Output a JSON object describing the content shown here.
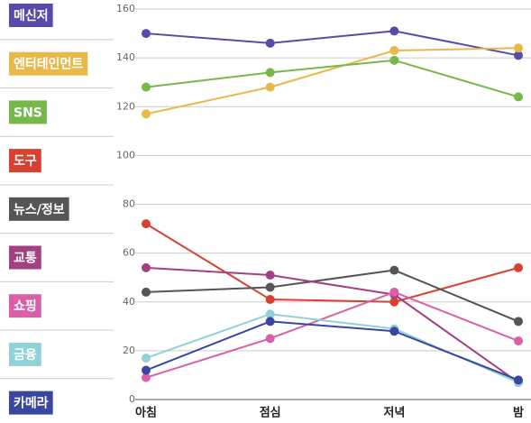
{
  "chart_data": {
    "type": "line",
    "categories": [
      "아침",
      "점심",
      "저녁",
      "밤"
    ],
    "series": [
      {
        "name": "메신저",
        "color": "#5a4aa8",
        "values": [
          150,
          146,
          151,
          141
        ]
      },
      {
        "name": "엔터테인먼트",
        "color": "#e8b84a",
        "values": [
          117,
          128,
          143,
          144
        ]
      },
      {
        "name": "SNS",
        "color": "#78b84a",
        "values": [
          128,
          134,
          139,
          124
        ]
      },
      {
        "name": "도구",
        "color": "#d8412f",
        "values": [
          72,
          41,
          40,
          54
        ]
      },
      {
        "name": "뉴스/정보",
        "color": "#555555",
        "values": [
          44,
          46,
          53,
          32
        ]
      },
      {
        "name": "교통",
        "color": "#a3407f",
        "values": [
          54,
          51,
          43,
          7
        ]
      },
      {
        "name": "쇼핑",
        "color": "#d95fa8",
        "values": [
          9,
          25,
          44,
          24
        ]
      },
      {
        "name": "금융",
        "color": "#8fd3d8",
        "values": [
          17,
          35,
          29,
          7
        ]
      },
      {
        "name": "카메라",
        "color": "#3a47a0",
        "values": [
          12,
          32,
          28,
          8
        ]
      }
    ],
    "ylim": [
      0,
      160
    ],
    "yticks": [
      0,
      20,
      40,
      60,
      80,
      100,
      120,
      140,
      160
    ],
    "grid": true,
    "legend": "left"
  }
}
